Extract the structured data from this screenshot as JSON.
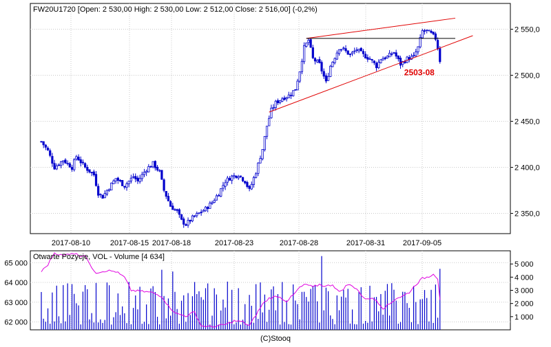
{
  "chart_data": [
    {
      "type": "candlestick",
      "title": "FW20U1720 [Open: 2 530,00  High: 2 530,00  Low: 2 512,00  Close: 2 516,00] (-0,2%)",
      "y_ticks": [
        "2 550,0",
        "2 500,0",
        "2 450,0",
        "2 400,0",
        "2 350,0"
      ],
      "y_tick_values": [
        2550,
        2500,
        2450,
        2400,
        2350
      ],
      "ylim": [
        2328,
        2578
      ],
      "x_tick_labels": [
        "2017-08-10",
        "2017-08-15",
        "2017-08-18",
        "2017-08-23",
        "2017-08-28",
        "2017-08-31",
        "2017-09-05"
      ],
      "grid": true,
      "candle_color": "#0000cc",
      "price_path": [
        [
          0,
          2428
        ],
        [
          3,
          2418
        ],
        [
          6,
          2400
        ],
        [
          10,
          2408
        ],
        [
          14,
          2400
        ],
        [
          16,
          2412
        ],
        [
          20,
          2400
        ],
        [
          24,
          2392
        ],
        [
          26,
          2372
        ],
        [
          28,
          2368
        ],
        [
          30,
          2375
        ],
        [
          34,
          2388
        ],
        [
          38,
          2380
        ],
        [
          42,
          2390
        ],
        [
          44,
          2385
        ],
        [
          48,
          2398
        ],
        [
          51,
          2404
        ],
        [
          54,
          2395
        ],
        [
          56,
          2375
        ],
        [
          59,
          2358
        ],
        [
          62,
          2352
        ],
        [
          64,
          2342
        ],
        [
          66,
          2338
        ],
        [
          69,
          2345
        ],
        [
          72,
          2350
        ],
        [
          75,
          2355
        ],
        [
          78,
          2362
        ],
        [
          81,
          2372
        ],
        [
          84,
          2385
        ],
        [
          87,
          2390
        ],
        [
          90,
          2392
        ],
        [
          93,
          2385
        ],
        [
          95,
          2375
        ],
        [
          98,
          2395
        ],
        [
          101,
          2420
        ],
        [
          103,
          2445
        ],
        [
          105,
          2462
        ],
        [
          107,
          2470
        ],
        [
          110,
          2475
        ],
        [
          113,
          2478
        ],
        [
          116,
          2485
        ],
        [
          118,
          2505
        ],
        [
          120,
          2530
        ],
        [
          122,
          2538
        ],
        [
          124,
          2518
        ],
        [
          127,
          2512
        ],
        [
          130,
          2492
        ],
        [
          132,
          2510
        ],
        [
          134,
          2520
        ],
        [
          136,
          2530
        ],
        [
          138,
          2528
        ],
        [
          141,
          2522
        ],
        [
          144,
          2528
        ],
        [
          147,
          2522
        ],
        [
          150,
          2518
        ],
        [
          153,
          2510
        ],
        [
          155,
          2518
        ],
        [
          158,
          2520
        ],
        [
          161,
          2525
        ],
        [
          164,
          2512
        ],
        [
          167,
          2518
        ],
        [
          170,
          2520
        ],
        [
          172,
          2530
        ],
        [
          174,
          2548
        ],
        [
          176,
          2548
        ],
        [
          178,
          2545
        ],
        [
          180,
          2540
        ],
        [
          181,
          2530
        ],
        [
          182,
          2516
        ]
      ],
      "lines": [
        {
          "name": "upper-trendline",
          "color": "#e00000",
          "points": [
            [
              121,
              2540
            ],
            [
              189,
              2562
            ]
          ]
        },
        {
          "name": "lower-trendline",
          "color": "#e00000",
          "points": [
            [
              104,
              2460
            ],
            [
              197,
              2543
            ]
          ]
        },
        {
          "name": "horizontal-resistance",
          "color": "#000000",
          "points": [
            [
              121,
              2540
            ],
            [
              189,
              2540
            ]
          ]
        }
      ],
      "annotation": {
        "text": "2503-08",
        "color": "#e00000",
        "x": 160,
        "y": 2503
      }
    },
    {
      "type": "bar+line",
      "title": "Otwarte Pozycje, VOL - Volume [4 634]",
      "left_axis": {
        "ticks": [
          "65 000",
          "64 000",
          "63 000",
          "62 000"
        ],
        "values": [
          65000,
          64000,
          63000,
          62000
        ],
        "range": [
          61600,
          65600
        ]
      },
      "right_axis": {
        "ticks": [
          "5 000",
          "4 000",
          "3 000",
          "2 000",
          "1 000"
        ],
        "values": [
          5000,
          4000,
          3000,
          2000,
          1000
        ],
        "range": [
          0,
          6000
        ]
      },
      "volume_color": "#0000cc",
      "open_interest_color": "#e000e0",
      "open_interest_path": [
        [
          0,
          64550
        ],
        [
          3,
          64900
        ],
        [
          6,
          65500
        ],
        [
          10,
          65350
        ],
        [
          14,
          65500
        ],
        [
          18,
          65350
        ],
        [
          20,
          65400
        ],
        [
          22,
          64900
        ],
        [
          25,
          64500
        ],
        [
          30,
          64600
        ],
        [
          34,
          64550
        ],
        [
          38,
          64250
        ],
        [
          41,
          63600
        ],
        [
          45,
          63550
        ],
        [
          50,
          63500
        ],
        [
          55,
          63300
        ],
        [
          58,
          62800
        ],
        [
          62,
          62400
        ],
        [
          66,
          62300
        ],
        [
          70,
          62500
        ],
        [
          73,
          61800
        ],
        [
          77,
          61750
        ],
        [
          81,
          61800
        ],
        [
          85,
          61900
        ],
        [
          88,
          62050
        ],
        [
          92,
          62000
        ],
        [
          95,
          61800
        ],
        [
          98,
          62350
        ],
        [
          101,
          62900
        ],
        [
          104,
          63200
        ],
        [
          108,
          63300
        ],
        [
          112,
          63050
        ],
        [
          115,
          63350
        ],
        [
          118,
          63750
        ],
        [
          121,
          63900
        ],
        [
          124,
          63750
        ],
        [
          127,
          63900
        ],
        [
          130,
          63800
        ],
        [
          133,
          63900
        ],
        [
          136,
          63500
        ],
        [
          140,
          63900
        ],
        [
          144,
          63700
        ],
        [
          147,
          63200
        ],
        [
          150,
          63200
        ],
        [
          153,
          63100
        ],
        [
          156,
          62700
        ],
        [
          159,
          62900
        ],
        [
          162,
          63200
        ],
        [
          165,
          63300
        ],
        [
          168,
          63500
        ],
        [
          171,
          63900
        ],
        [
          174,
          64200
        ],
        [
          177,
          64300
        ],
        [
          179,
          64450
        ],
        [
          181,
          64200
        ],
        [
          182,
          63150
        ]
      ]
    }
  ],
  "footer": {
    "credit": "(C)Stooq"
  }
}
